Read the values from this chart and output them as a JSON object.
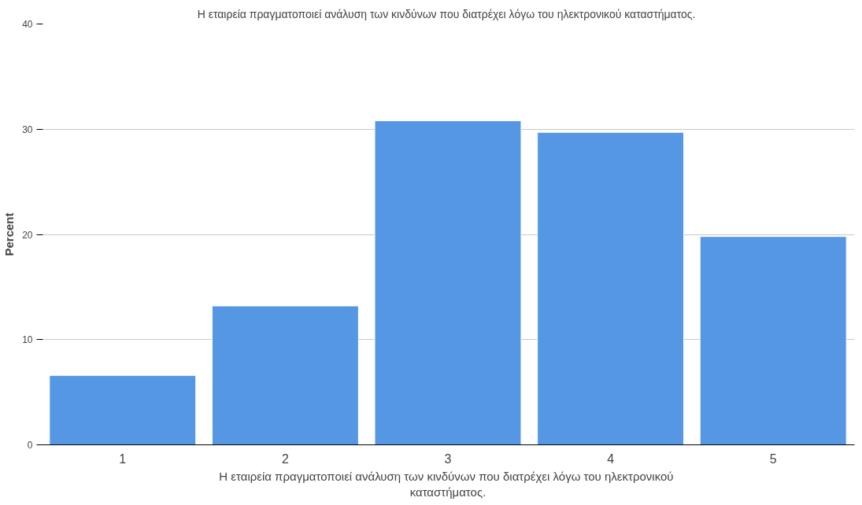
{
  "chart_data": {
    "type": "bar",
    "title": "Η εταιρεία πραγματοποιεί ανάλυση  των κινδύνων που διατρέχει λόγω του ηλεκτρονικού καταστήματος.",
    "xlabel": "Η εταιρεία πραγματοποιεί ανάλυση  των κινδύνων που διατρέχει λόγω του ηλεκτρονικού καταστήματος.",
    "ylabel": "Percent",
    "categories": [
      "1",
      "2",
      "3",
      "4",
      "5"
    ],
    "values": [
      6.6,
      13.2,
      30.8,
      29.7,
      19.8
    ],
    "color": "#5597e3",
    "ylim": [
      0,
      40
    ],
    "yticks": [
      0,
      10,
      20,
      30,
      40
    ],
    "grid": "y"
  }
}
